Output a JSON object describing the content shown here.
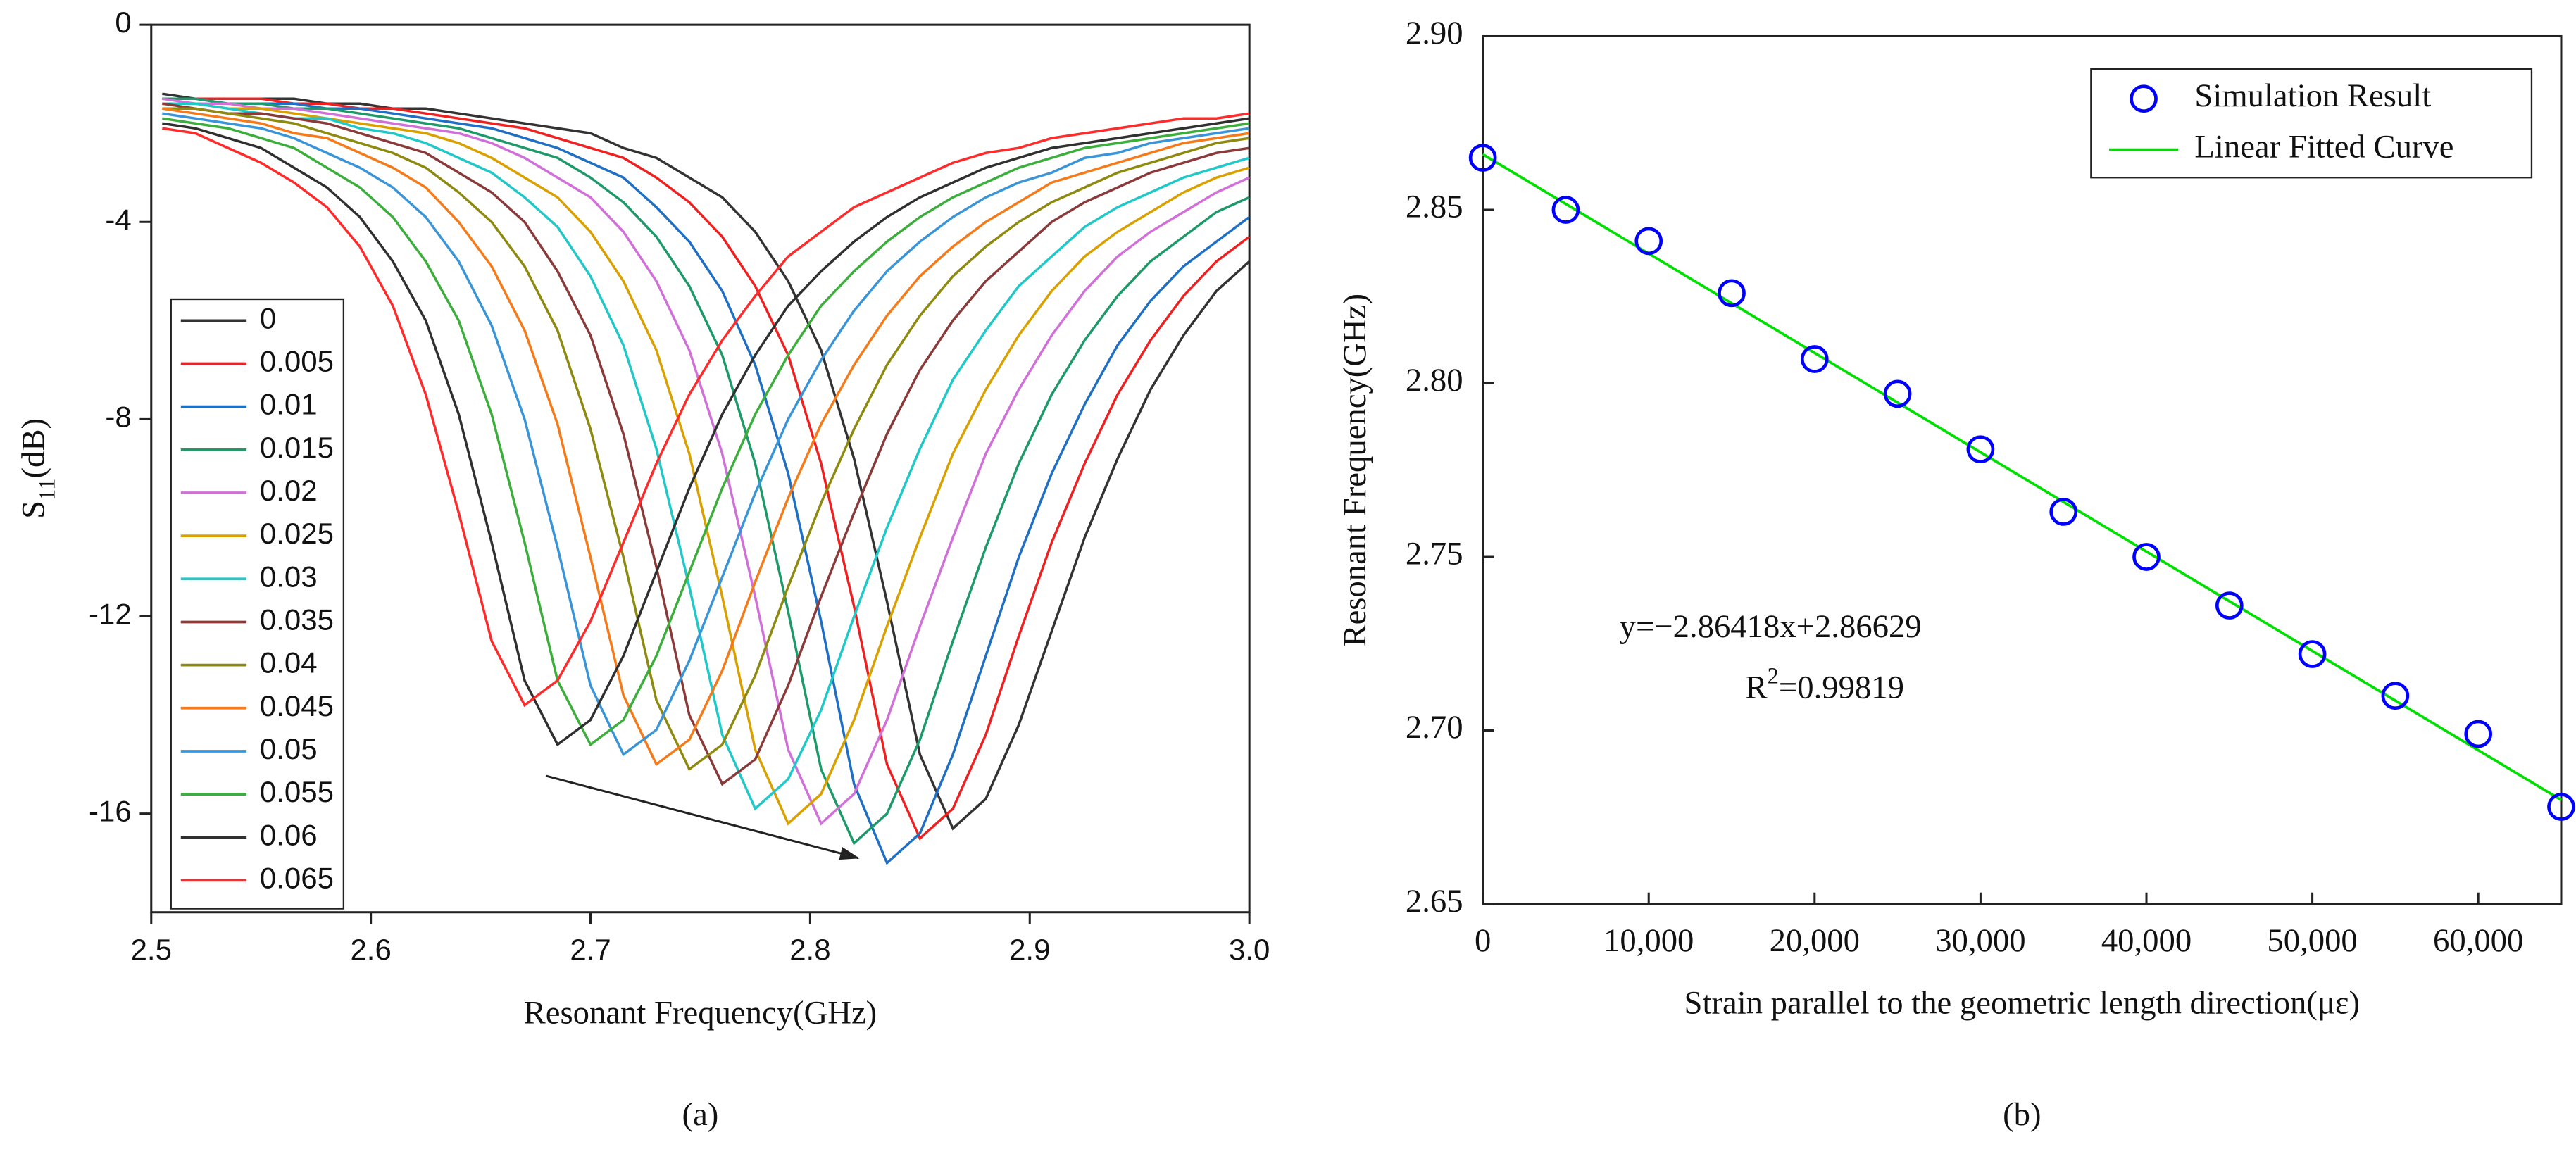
{
  "chart_data": [
    {
      "type": "line",
      "panel_label": "(a)",
      "xlabel": "Resonant Frequency(GHz)",
      "ylabel": [
        "S",
        "11",
        "(dB)"
      ],
      "xlim": [
        2.5,
        3.0
      ],
      "xticks": [
        2.5,
        2.6,
        2.7,
        2.8,
        2.9,
        {
          "value": 3,
          "label": "3.0"
        }
      ],
      "ylim": [
        -18,
        0
      ],
      "yticks": [
        0,
        -4,
        -8,
        -12,
        -16
      ],
      "legend": "lower left",
      "x": [
        2.505,
        2.52,
        2.535,
        2.55,
        2.565,
        2.58,
        2.595,
        2.61,
        2.625,
        2.64,
        2.655,
        2.67,
        2.685,
        2.7,
        2.715,
        2.73,
        2.745,
        2.76,
        2.775,
        2.79,
        2.805,
        2.82,
        2.835,
        2.85,
        2.865,
        2.88,
        2.895,
        2.91,
        2.925,
        2.94,
        2.955,
        2.97,
        2.985,
        3.0
      ],
      "series": [
        {
          "name": "0",
          "color": "#333333",
          "values": [
            -1.4,
            -1.5,
            -1.5,
            -1.5,
            -1.5,
            -1.6,
            -1.6,
            -1.7,
            -1.7,
            -1.8,
            -1.9,
            -2.0,
            -2.1,
            -2.2,
            -2.5,
            -2.7,
            -3.1,
            -3.5,
            -4.2,
            -5.2,
            -6.6,
            -8.8,
            -11.7,
            -14.8,
            -16.3,
            -15.7,
            -14.2,
            -12.3,
            -10.4,
            -8.8,
            -7.4,
            -6.3,
            -5.4,
            -4.8
          ]
        },
        {
          "name": "0.005",
          "color": "#f02020",
          "values": [
            -1.5,
            -1.5,
            -1.5,
            -1.5,
            -1.6,
            -1.6,
            -1.7,
            -1.7,
            -1.8,
            -1.9,
            -2.0,
            -2.1,
            -2.3,
            -2.5,
            -2.7,
            -3.1,
            -3.6,
            -4.3,
            -5.3,
            -6.7,
            -8.9,
            -11.8,
            -15.0,
            -16.5,
            -15.9,
            -14.4,
            -12.4,
            -10.5,
            -8.9,
            -7.5,
            -6.4,
            -5.5,
            -4.8,
            -4.3
          ]
        },
        {
          "name": "0.01",
          "color": "#1f6fc5",
          "values": [
            -1.5,
            -1.5,
            -1.6,
            -1.6,
            -1.6,
            -1.7,
            -1.7,
            -1.8,
            -1.9,
            -2.0,
            -2.1,
            -2.3,
            -2.5,
            -2.8,
            -3.1,
            -3.7,
            -4.4,
            -5.4,
            -6.9,
            -9.1,
            -12.1,
            -15.4,
            -17.0,
            -16.4,
            -14.8,
            -12.8,
            -10.8,
            -9.1,
            -7.7,
            -6.5,
            -5.6,
            -4.9,
            -4.4,
            -3.9
          ]
        },
        {
          "name": "0.015",
          "color": "#1e9a6a",
          "values": [
            -1.5,
            -1.5,
            -1.6,
            -1.6,
            -1.7,
            -1.7,
            -1.8,
            -1.9,
            -2.0,
            -2.1,
            -2.3,
            -2.5,
            -2.7,
            -3.1,
            -3.6,
            -4.3,
            -5.3,
            -6.7,
            -8.9,
            -11.9,
            -15.1,
            -16.6,
            -16.0,
            -14.5,
            -12.5,
            -10.6,
            -8.9,
            -7.5,
            -6.4,
            -5.5,
            -4.8,
            -4.3,
            -3.8,
            -3.5
          ]
        },
        {
          "name": "0.02",
          "color": "#d070d8",
          "values": [
            -1.5,
            -1.6,
            -1.6,
            -1.7,
            -1.7,
            -1.8,
            -1.9,
            -2.0,
            -2.1,
            -2.2,
            -2.4,
            -2.7,
            -3.1,
            -3.5,
            -4.2,
            -5.2,
            -6.6,
            -8.7,
            -11.6,
            -14.7,
            -16.2,
            -15.6,
            -14.1,
            -12.2,
            -10.4,
            -8.7,
            -7.4,
            -6.3,
            -5.4,
            -4.7,
            -4.2,
            -3.8,
            -3.4,
            -3.1
          ]
        },
        {
          "name": "0.025",
          "color": "#d9a000",
          "values": [
            -1.6,
            -1.6,
            -1.7,
            -1.7,
            -1.8,
            -1.9,
            -2.0,
            -2.1,
            -2.2,
            -2.4,
            -2.7,
            -3.1,
            -3.5,
            -4.2,
            -5.2,
            -6.6,
            -8.7,
            -11.6,
            -14.7,
            -16.2,
            -15.6,
            -14.1,
            -12.2,
            -10.4,
            -8.7,
            -7.4,
            -6.3,
            -5.4,
            -4.7,
            -4.2,
            -3.8,
            -3.4,
            -3.1,
            -2.9
          ]
        },
        {
          "name": "0.03",
          "color": "#20c8c8",
          "values": [
            -1.6,
            -1.6,
            -1.7,
            -1.8,
            -1.9,
            -1.9,
            -2.1,
            -2.2,
            -2.4,
            -2.7,
            -3.0,
            -3.5,
            -4.1,
            -5.1,
            -6.5,
            -8.6,
            -11.4,
            -14.4,
            -15.9,
            -15.3,
            -13.9,
            -12.0,
            -10.2,
            -8.6,
            -7.2,
            -6.2,
            -5.3,
            -4.7,
            -4.1,
            -3.7,
            -3.4,
            -3.1,
            -2.9,
            -2.7
          ]
        },
        {
          "name": "0.035",
          "color": "#8b3a3a",
          "values": [
            -1.6,
            -1.7,
            -1.8,
            -1.8,
            -1.9,
            -2.0,
            -2.2,
            -2.4,
            -2.6,
            -3.0,
            -3.4,
            -4.0,
            -5.0,
            -6.3,
            -8.3,
            -11.0,
            -14.0,
            -15.4,
            -14.9,
            -13.4,
            -11.6,
            -9.9,
            -8.3,
            -7.0,
            -6.0,
            -5.2,
            -4.6,
            -4.0,
            -3.6,
            -3.3,
            -3.0,
            -2.8,
            -2.6,
            -2.5
          ]
        },
        {
          "name": "0.04",
          "color": "#8e8a10",
          "values": [
            -1.7,
            -1.7,
            -1.8,
            -1.9,
            -2.0,
            -2.2,
            -2.4,
            -2.6,
            -2.9,
            -3.4,
            -4.0,
            -4.9,
            -6.2,
            -8.2,
            -10.8,
            -13.7,
            -15.1,
            -14.6,
            -13.2,
            -11.4,
            -9.7,
            -8.2,
            -6.9,
            -5.9,
            -5.1,
            -4.5,
            -4.0,
            -3.6,
            -3.3,
            -3.0,
            -2.8,
            -2.6,
            -2.4,
            -2.3
          ]
        },
        {
          "name": "0.045",
          "color": "#f57a1a",
          "values": [
            -1.7,
            -1.8,
            -1.9,
            -2.0,
            -2.2,
            -2.3,
            -2.6,
            -2.9,
            -3.3,
            -4.0,
            -4.9,
            -6.2,
            -8.1,
            -10.8,
            -13.6,
            -15.0,
            -14.5,
            -13.1,
            -11.3,
            -9.6,
            -8.1,
            -6.9,
            -5.9,
            -5.1,
            -4.5,
            -4.0,
            -3.6,
            -3.2,
            -3.0,
            -2.8,
            -2.6,
            -2.4,
            -2.3,
            -2.2
          ]
        },
        {
          "name": "0.05",
          "color": "#3a95d8",
          "values": [
            -1.8,
            -1.9,
            -2.0,
            -2.1,
            -2.3,
            -2.6,
            -2.9,
            -3.3,
            -3.9,
            -4.8,
            -6.1,
            -8.0,
            -10.6,
            -13.4,
            -14.8,
            -14.3,
            -12.9,
            -11.2,
            -9.5,
            -8.0,
            -6.8,
            -5.8,
            -5.0,
            -4.4,
            -3.9,
            -3.5,
            -3.2,
            -3.0,
            -2.7,
            -2.6,
            -2.4,
            -2.3,
            -2.2,
            -2.1
          ]
        },
        {
          "name": "0.055",
          "color": "#3cae3c",
          "values": [
            -1.9,
            -2.0,
            -2.1,
            -2.3,
            -2.5,
            -2.9,
            -3.3,
            -3.9,
            -4.8,
            -6.0,
            -7.9,
            -10.5,
            -13.3,
            -14.6,
            -14.1,
            -12.8,
            -11.1,
            -9.4,
            -7.9,
            -6.7,
            -5.7,
            -5.0,
            -4.4,
            -3.9,
            -3.5,
            -3.2,
            -2.9,
            -2.7,
            -2.5,
            -2.4,
            -2.3,
            -2.2,
            -2.1,
            -2.0
          ]
        },
        {
          "name": "0.06",
          "color": "#303030",
          "values": [
            -2.0,
            -2.1,
            -2.3,
            -2.5,
            -2.9,
            -3.3,
            -3.9,
            -4.8,
            -6.0,
            -7.9,
            -10.5,
            -13.3,
            -14.6,
            -14.1,
            -12.8,
            -11.1,
            -9.4,
            -7.9,
            -6.7,
            -5.7,
            -5.0,
            -4.4,
            -3.9,
            -3.5,
            -3.2,
            -2.9,
            -2.7,
            -2.5,
            -2.4,
            -2.3,
            -2.2,
            -2.1,
            -2.0,
            -1.9
          ]
        },
        {
          "name": "0.065",
          "color": "#ff2a2a",
          "values": [
            -2.1,
            -2.2,
            -2.5,
            -2.8,
            -3.2,
            -3.7,
            -4.5,
            -5.7,
            -7.5,
            -9.9,
            -12.5,
            -13.8,
            -13.3,
            -12.1,
            -10.5,
            -8.9,
            -7.5,
            -6.4,
            -5.5,
            -4.7,
            -4.2,
            -3.7,
            -3.4,
            -3.1,
            -2.8,
            -2.6,
            -2.5,
            -2.3,
            -2.2,
            -2.1,
            -2.0,
            -1.9,
            -1.9,
            -1.8
          ]
        }
      ]
    },
    {
      "type": "scatter",
      "panel_label": "(b)",
      "xlabel": "Strain parallel to the geometric length direction(με)",
      "ylabel": "Resonant Frequency(GHz)",
      "xlim": [
        0,
        65000
      ],
      "xticks": [
        0,
        {
          "value": 10000,
          "label": "10,000"
        },
        {
          "value": 20000,
          "label": "20,000"
        },
        {
          "value": 30000,
          "label": "30,000"
        },
        {
          "value": 40000,
          "label": "40,000"
        },
        {
          "value": 50000,
          "label": "50,000"
        },
        {
          "value": 60000,
          "label": "60,000"
        }
      ],
      "ylim": [
        2.65,
        2.9
      ],
      "yticks": [
        2.65,
        {
          "value": 2.7,
          "label": "2.70"
        },
        2.75,
        {
          "value": 2.8,
          "label": "2.80"
        },
        2.85,
        {
          "value": 2.9,
          "label": "2.90"
        }
      ],
      "legend": "upper right",
      "annotations": [
        "y=−2.86418x+2.86629",
        [
          "R",
          "2",
          "=0.99819"
        ]
      ],
      "series": [
        {
          "name": "Simulation Result",
          "color": "#0000ff",
          "style": "marker",
          "x": [
            0,
            5000,
            10000,
            15000,
            20000,
            25000,
            30000,
            35000,
            40000,
            45000,
            50000,
            55000,
            60000,
            65000
          ],
          "values": [
            2.865,
            2.85,
            2.841,
            2.826,
            2.807,
            2.797,
            2.781,
            2.763,
            2.75,
            2.736,
            2.722,
            2.71,
            2.699,
            2.678
          ]
        },
        {
          "name": "Linear Fitted Curve",
          "color": "#00e000",
          "style": "line",
          "x": [
            0,
            65000
          ],
          "values": [
            2.866,
            2.68
          ]
        }
      ]
    }
  ]
}
